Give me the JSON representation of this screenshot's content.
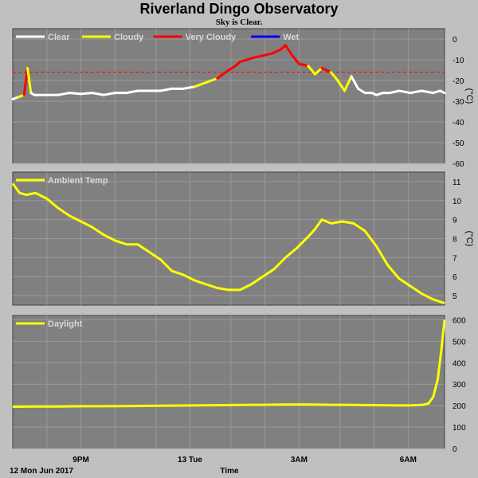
{
  "header": {
    "title": "Riverland Dingo Observatory",
    "subtitle": "Sky is Clear."
  },
  "colors": {
    "background": "#c0c0c0",
    "plot_bg": "#808080",
    "grid": "#9a9a9a",
    "clear": "#ffffff",
    "cloudy": "#ffff00",
    "very_cloudy": "#ff0000",
    "wet": "#0000ff"
  },
  "chart_data": [
    {
      "type": "line",
      "id": "sky",
      "legend": [
        {
          "name": "Clear",
          "color": "#ffffff"
        },
        {
          "name": "Cloudy",
          "color": "#ffff00"
        },
        {
          "name": "Very Cloudy",
          "color": "#ff0000"
        },
        {
          "name": "Wet",
          "color": "#0000ff"
        }
      ],
      "ylabel": "(°C)",
      "ylim": [
        -60,
        5
      ],
      "yticks": [
        0,
        -10,
        -20,
        -30,
        -40,
        -50,
        -60
      ],
      "threshold_line": -16,
      "x_hours": [
        0,
        0.25,
        0.5,
        0.65,
        0.8,
        0.95,
        1.1,
        1.3,
        1.6,
        2,
        2.5,
        3,
        3.5,
        4,
        4.5,
        5,
        5.5,
        6,
        6.5,
        7,
        7.5,
        8,
        8.5,
        9,
        9.5,
        9.8,
        10,
        10.3,
        10.6,
        11,
        11.4,
        11.8,
        12,
        12.3,
        12.6,
        13,
        13.3,
        13.6,
        14,
        14.3,
        14.6,
        14.9,
        15.2,
        15.5,
        15.8,
        16,
        16.3,
        16.6,
        17,
        17.5,
        18,
        18.5,
        18.8,
        19
      ],
      "values": [
        -29,
        -28,
        -27,
        -14,
        -26,
        -27,
        -27,
        -27,
        -27,
        -27,
        -26,
        -26.5,
        -26,
        -27,
        -26,
        -26,
        -25,
        -25,
        -25,
        -24,
        -24,
        -23,
        -21,
        -19,
        -15,
        -13,
        -11,
        -10,
        -9,
        -8,
        -7,
        -5,
        -3,
        -8,
        -12,
        -13,
        -17,
        -14,
        -16,
        -20,
        -25,
        -18,
        -24,
        -26,
        -26,
        -27,
        -26,
        -26,
        -25,
        -26,
        -25,
        -26,
        -25,
        -26
      ],
      "classes": [
        "clear",
        "clear",
        "cloudy",
        "very_cloudy",
        "cloudy",
        "clear",
        "clear",
        "clear",
        "clear",
        "clear",
        "clear",
        "clear",
        "clear",
        "clear",
        "clear",
        "clear",
        "clear",
        "clear",
        "clear",
        "clear",
        "clear",
        "clear",
        "cloudy",
        "cloudy",
        "very_cloudy",
        "very_cloudy",
        "very_cloudy",
        "very_cloudy",
        "very_cloudy",
        "very_cloudy",
        "very_cloudy",
        "very_cloudy",
        "very_cloudy",
        "very_cloudy",
        "very_cloudy",
        "very_cloudy",
        "cloudy",
        "cloudy",
        "very_cloudy",
        "cloudy",
        "cloudy",
        "cloudy",
        "clear",
        "clear",
        "clear",
        "clear",
        "clear",
        "clear",
        "clear",
        "clear",
        "clear",
        "clear",
        "clear",
        "clear"
      ]
    },
    {
      "type": "line",
      "id": "ambient",
      "legend": [
        {
          "name": "Ambient Temp",
          "color": "#ffff00"
        }
      ],
      "ylabel": "(°C)",
      "ylim": [
        4.5,
        11.5
      ],
      "yticks": [
        11,
        10,
        9,
        8,
        7,
        6,
        5
      ],
      "x_hours": [
        0,
        0.3,
        0.6,
        1,
        1.5,
        2,
        2.5,
        3,
        3.5,
        4,
        4.5,
        5,
        5.5,
        6,
        6.5,
        7,
        7.5,
        8,
        8.5,
        9,
        9.5,
        10,
        10.5,
        11,
        11.5,
        12,
        12.5,
        13,
        13.3,
        13.6,
        14,
        14.5,
        15,
        15.5,
        16,
        16.5,
        17,
        17.5,
        18,
        18.5,
        19
      ],
      "values": [
        10.9,
        10.4,
        10.3,
        10.4,
        10.1,
        9.6,
        9.2,
        8.9,
        8.6,
        8.2,
        7.9,
        7.7,
        7.7,
        7.3,
        6.9,
        6.3,
        6.1,
        5.8,
        5.6,
        5.4,
        5.3,
        5.3,
        5.6,
        6.0,
        6.4,
        7.0,
        7.5,
        8.1,
        8.5,
        9.0,
        8.8,
        8.9,
        8.8,
        8.4,
        7.6,
        6.6,
        5.9,
        5.5,
        5.1,
        4.8,
        4.6
      ]
    },
    {
      "type": "line",
      "id": "daylight",
      "legend": [
        {
          "name": "Daylight",
          "color": "#ffff00"
        }
      ],
      "ylim": [
        0,
        620
      ],
      "yticks": [
        600,
        500,
        400,
        300,
        200,
        100,
        0
      ],
      "x_hours": [
        0,
        1,
        2,
        3,
        4,
        5,
        6,
        7,
        8,
        9,
        10,
        11,
        12,
        13,
        14,
        15,
        16,
        17,
        17.5,
        18,
        18.3,
        18.5,
        18.7,
        18.85,
        19
      ],
      "values": [
        195,
        196,
        196,
        197,
        197,
        198,
        199,
        200,
        201,
        202,
        203,
        204,
        205,
        205,
        204,
        203,
        202,
        201,
        201,
        203,
        210,
        240,
        320,
        450,
        600
      ]
    }
  ],
  "x_axis": {
    "title": "Time",
    "start_label": "12 Mon Jun 2017",
    "ticks": [
      {
        "hour": 3,
        "label": "9PM"
      },
      {
        "hour": 7.8,
        "label": "13 Tue"
      },
      {
        "hour": 12.6,
        "label": "3AM"
      },
      {
        "hour": 17.4,
        "label": "6AM"
      }
    ]
  }
}
